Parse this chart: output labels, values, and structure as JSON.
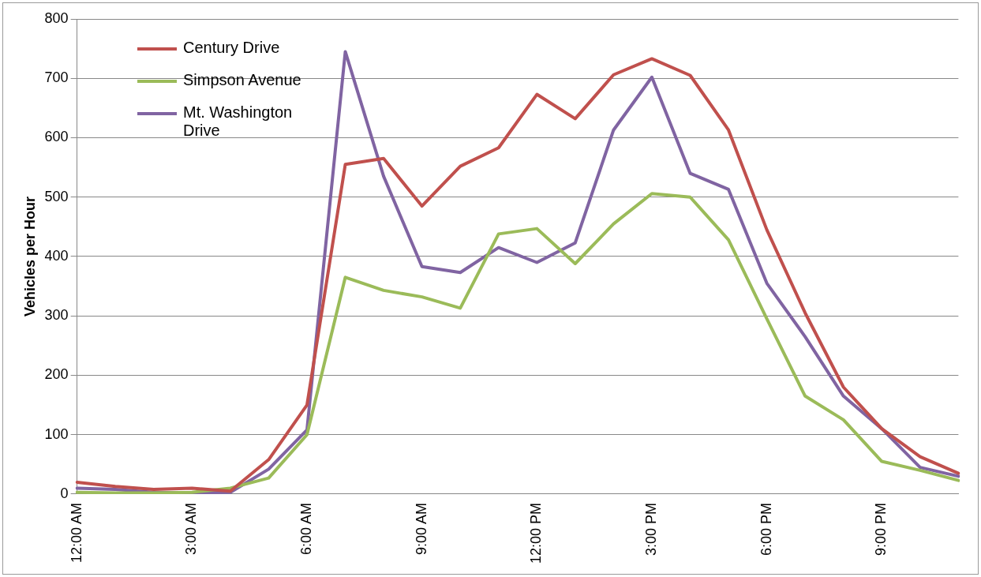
{
  "chart_data": {
    "type": "line",
    "ylabel": "Vehicles per Hour",
    "categories": [
      "12:00 AM",
      null,
      null,
      "3:00 AM",
      null,
      null,
      "6:00 AM",
      null,
      null,
      "9:00 AM",
      null,
      null,
      "12:00 PM",
      null,
      null,
      "3:00 PM",
      null,
      null,
      "6:00 PM",
      null,
      null,
      "9:00 PM",
      null,
      null
    ],
    "series": [
      {
        "name": "Century Drive",
        "color": "#c0504d",
        "values": [
          20,
          13,
          8,
          10,
          5,
          58,
          150,
          555,
          565,
          485,
          552,
          583,
          673,
          632,
          706,
          733,
          705,
          613,
          445,
          305,
          180,
          110,
          63,
          35
        ]
      },
      {
        "name": "Simpson Avenue",
        "color": "#9bbb59",
        "values": [
          3,
          2,
          2,
          3,
          10,
          27,
          100,
          365,
          343,
          332,
          313,
          438,
          447,
          388,
          455,
          506,
          500,
          428,
          295,
          165,
          125,
          55,
          40,
          23
        ]
      },
      {
        "name": "Mt. Washington Drive",
        "color": "#8064a2",
        "values": [
          10,
          8,
          3,
          2,
          3,
          42,
          108,
          745,
          535,
          383,
          373,
          415,
          390,
          423,
          613,
          702,
          540,
          513,
          355,
          265,
          165,
          110,
          45,
          30
        ]
      }
    ],
    "ylim": [
      0,
      800
    ],
    "yticks": [
      0,
      100,
      200,
      300,
      400,
      500,
      600,
      700,
      800
    ],
    "grid": "y",
    "legend": "top left",
    "marker": "none",
    "line_style": "solid"
  }
}
